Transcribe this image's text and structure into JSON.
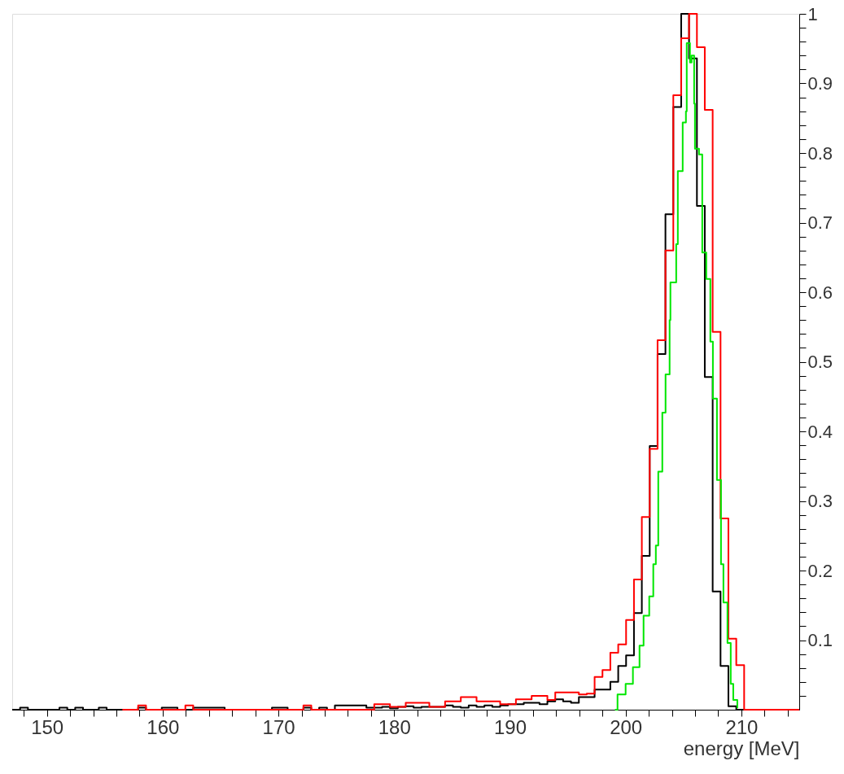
{
  "chart_data": {
    "type": "histogram",
    "xlabel": "energy [MeV]",
    "bins": [
      147.0,
      147.68,
      148.36,
      149.04,
      149.72,
      150.4,
      151.08,
      151.76,
      152.44,
      153.12,
      153.8,
      154.48,
      155.16,
      155.84,
      156.52,
      157.2,
      157.88,
      158.56,
      159.24,
      159.92,
      160.6,
      161.28,
      161.96,
      162.64,
      163.32,
      164.0,
      164.68,
      165.36,
      166.04,
      166.72,
      167.4,
      168.08,
      168.76,
      169.44,
      170.12,
      170.8,
      171.48,
      172.16,
      172.84,
      173.52,
      174.2,
      174.88,
      175.56,
      176.24,
      176.92,
      177.6,
      178.28,
      178.96,
      179.64,
      180.32,
      181.0,
      181.68,
      182.36,
      183.04,
      183.72,
      184.4,
      185.08,
      185.76,
      186.44,
      187.12,
      187.8,
      188.48,
      189.16,
      189.84,
      190.52,
      191.2,
      191.88,
      192.56,
      193.24,
      193.92,
      194.6,
      195.28,
      195.96,
      196.64,
      197.32,
      198.0,
      198.68,
      199.36,
      200.04,
      200.72,
      201.4,
      202.08,
      202.76,
      203.44,
      204.12,
      204.8,
      205.48,
      206.16,
      206.84,
      207.52,
      208.2,
      208.88,
      209.56,
      210.24,
      210.92,
      211.6,
      212.28,
      212.96,
      213.64,
      214.32,
      215.0
    ],
    "series": [
      {
        "color": "#000000",
        "values": [
          0,
          0.003,
          0,
          0,
          0,
          0,
          0.003,
          0,
          0.003,
          0,
          0,
          0.003,
          0,
          0,
          0,
          0,
          0.003,
          0,
          0,
          0.003,
          0.003,
          0,
          0,
          0.003,
          0.003,
          0.003,
          0.003,
          0,
          0,
          0,
          0,
          0,
          0,
          0.003,
          0.003,
          0,
          0,
          0.003,
          0,
          0.003,
          0,
          0.006,
          0.006,
          0.006,
          0.006,
          0.003,
          0.003,
          0.004,
          0.002,
          0.004,
          0.005,
          0.003,
          0.004,
          0.004,
          0.004,
          0.006,
          0.004,
          0.003,
          0.006,
          0.004,
          0.006,
          0.004,
          0.006,
          0.008,
          0.008,
          0.01,
          0.01,
          0.008,
          0.012,
          0.015,
          0.012,
          0.01,
          0.018,
          0.018,
          0.029,
          0.029,
          0.04,
          0.063,
          0.078,
          0.139,
          0.221,
          0.379,
          0.511,
          0.712,
          0.866,
          1,
          0.936,
          0.724,
          0.478,
          0.17,
          0.063,
          0.005,
          0,
          0,
          0,
          0,
          0,
          0,
          0,
          0
        ]
      },
      {
        "color": "#ff0000",
        "bins": [
          156.52,
          157.2,
          157.88,
          158.56,
          159.24,
          159.92,
          160.6,
          161.28,
          161.96,
          162.64,
          163.32,
          164.0,
          164.68,
          165.36,
          166.04,
          166.72,
          167.4,
          168.08,
          168.76,
          169.44,
          170.12,
          170.8,
          171.48,
          172.16,
          172.84,
          173.52,
          174.2,
          174.88,
          175.56,
          176.24,
          176.92,
          177.6,
          178.28,
          178.96,
          179.64,
          180.32,
          181.0,
          181.68,
          182.36,
          183.04,
          183.72,
          184.4,
          185.08,
          185.76,
          186.44,
          187.12,
          187.8,
          188.48,
          189.16,
          189.84,
          190.52,
          191.2,
          191.88,
          192.56,
          193.24,
          193.92,
          194.6,
          195.28,
          195.96,
          196.64,
          197.32,
          198.0,
          198.68,
          199.36,
          200.04,
          200.72,
          201.4,
          202.08,
          202.76,
          203.44,
          204.12,
          204.8,
          205.48,
          206.16,
          206.84,
          207.52,
          208.2,
          208.88,
          209.56,
          210.24,
          210.92,
          211.6,
          212.28,
          212.96,
          213.64,
          214.32,
          215.0
        ],
        "values": [
          0,
          0,
          0.006,
          0,
          0,
          0,
          0,
          0,
          0.006,
          0,
          0,
          0,
          0,
          0,
          0,
          0,
          0,
          0,
          0,
          0,
          0,
          0,
          0,
          0.006,
          0,
          0,
          0,
          0,
          0,
          0,
          0,
          0,
          0.008,
          0.008,
          0.004,
          0.004,
          0.01,
          0.01,
          0.01,
          0.004,
          0.004,
          0.012,
          0.012,
          0.018,
          0.018,
          0.012,
          0.012,
          0.012,
          0.008,
          0.008,
          0.015,
          0.015,
          0.02,
          0.02,
          0.014,
          0.025,
          0.025,
          0.025,
          0.022,
          0.023,
          0.047,
          0.057,
          0.082,
          0.094,
          0.129,
          0.187,
          0.277,
          0.375,
          0.531,
          0.66,
          0.883,
          0.965,
          1,
          0.952,
          0.862,
          0.543,
          0.275,
          0.102,
          0.064,
          0,
          0,
          0,
          0,
          0,
          0,
          0
        ]
      },
      {
        "type": "step",
        "color": "#00e600",
        "x": [
          199.08,
          199.3,
          200.0,
          200.63,
          201.2,
          201.55,
          202.04,
          202.39,
          202.61,
          202.82,
          203.17,
          203.45,
          203.8,
          203.87,
          204.37,
          204.51,
          204.93,
          205.21,
          205.28,
          205.56,
          205.7,
          205.92,
          205.99,
          206.34,
          206.62,
          206.97,
          207.32,
          207.54,
          207.89,
          208.24,
          208.45,
          208.8,
          209.08,
          209.3,
          209.65
        ],
        "values": [
          0,
          0.022,
          0.037,
          0.061,
          0.092,
          0.135,
          0.163,
          0.209,
          0.236,
          0.342,
          0.427,
          0.482,
          0.56,
          0.614,
          0.669,
          0.774,
          0.844,
          0.86,
          0.958,
          0.93,
          0.94,
          0.871,
          0.806,
          0.798,
          0.657,
          0.619,
          0.529,
          0.447,
          0.33,
          0.209,
          0.154,
          0.096,
          0.037,
          0.014,
          0.002
        ]
      }
    ],
    "xlim": [
      147,
      215
    ],
    "ylim": [
      0,
      1
    ],
    "xticks": [
      {
        "value": 148,
        "label": null
      },
      150,
      {
        "value": 152,
        "label": null
      },
      {
        "value": 154,
        "label": null
      },
      {
        "value": 156,
        "label": null
      },
      {
        "value": 158,
        "label": null
      },
      160,
      {
        "value": 162,
        "label": null
      },
      {
        "value": 164,
        "label": null
      },
      {
        "value": 166,
        "label": null
      },
      {
        "value": 168,
        "label": null
      },
      170,
      {
        "value": 172,
        "label": null
      },
      {
        "value": 174,
        "label": null
      },
      {
        "value": 176,
        "label": null
      },
      {
        "value": 178,
        "label": null
      },
      180,
      {
        "value": 182,
        "label": null
      },
      {
        "value": 184,
        "label": null
      },
      {
        "value": 186,
        "label": null
      },
      {
        "value": 188,
        "label": null
      },
      190,
      {
        "value": 192,
        "label": null
      },
      {
        "value": 194,
        "label": null
      },
      {
        "value": 196,
        "label": null
      },
      {
        "value": 198,
        "label": null
      },
      200,
      {
        "value": 202,
        "label": null
      },
      {
        "value": 204,
        "label": null
      },
      {
        "value": 206,
        "label": null
      },
      {
        "value": 208,
        "label": null
      },
      210,
      {
        "value": 212,
        "label": null
      },
      {
        "value": 214,
        "label": null
      }
    ],
    "yticks": [
      {
        "value": 0.02,
        "label": null
      },
      {
        "value": 0.04,
        "label": null
      },
      {
        "value": 0.06,
        "label": null
      },
      {
        "value": 0.08,
        "label": null
      },
      0.1,
      {
        "value": 0.12,
        "label": null
      },
      {
        "value": 0.14,
        "label": null
      },
      {
        "value": 0.16,
        "label": null
      },
      {
        "value": 0.18,
        "label": null
      },
      0.2,
      {
        "value": 0.22,
        "label": null
      },
      {
        "value": 0.24,
        "label": null
      },
      {
        "value": 0.26,
        "label": null
      },
      {
        "value": 0.28,
        "label": null
      },
      0.3,
      {
        "value": 0.32,
        "label": null
      },
      {
        "value": 0.34,
        "label": null
      },
      {
        "value": 0.36,
        "label": null
      },
      {
        "value": 0.38,
        "label": null
      },
      0.4,
      {
        "value": 0.42,
        "label": null
      },
      {
        "value": 0.44,
        "label": null
      },
      {
        "value": 0.46,
        "label": null
      },
      {
        "value": 0.48,
        "label": null
      },
      0.5,
      {
        "value": 0.52,
        "label": null
      },
      {
        "value": 0.54,
        "label": null
      },
      {
        "value": 0.56,
        "label": null
      },
      {
        "value": 0.58,
        "label": null
      },
      0.6,
      {
        "value": 0.62,
        "label": null
      },
      {
        "value": 0.64,
        "label": null
      },
      {
        "value": 0.66,
        "label": null
      },
      {
        "value": 0.68,
        "label": null
      },
      0.7,
      {
        "value": 0.72,
        "label": null
      },
      {
        "value": 0.74,
        "label": null
      },
      {
        "value": 0.76,
        "label": null
      },
      {
        "value": 0.78,
        "label": null
      },
      0.8,
      {
        "value": 0.82,
        "label": null
      },
      {
        "value": 0.84,
        "label": null
      },
      {
        "value": 0.86,
        "label": null
      },
      {
        "value": 0.88,
        "label": null
      },
      0.9,
      {
        "value": 0.92,
        "label": null
      },
      {
        "value": 0.94,
        "label": null
      },
      {
        "value": 0.96,
        "label": null
      },
      {
        "value": 0.98,
        "label": null
      },
      1
    ],
    "grid": false
  }
}
